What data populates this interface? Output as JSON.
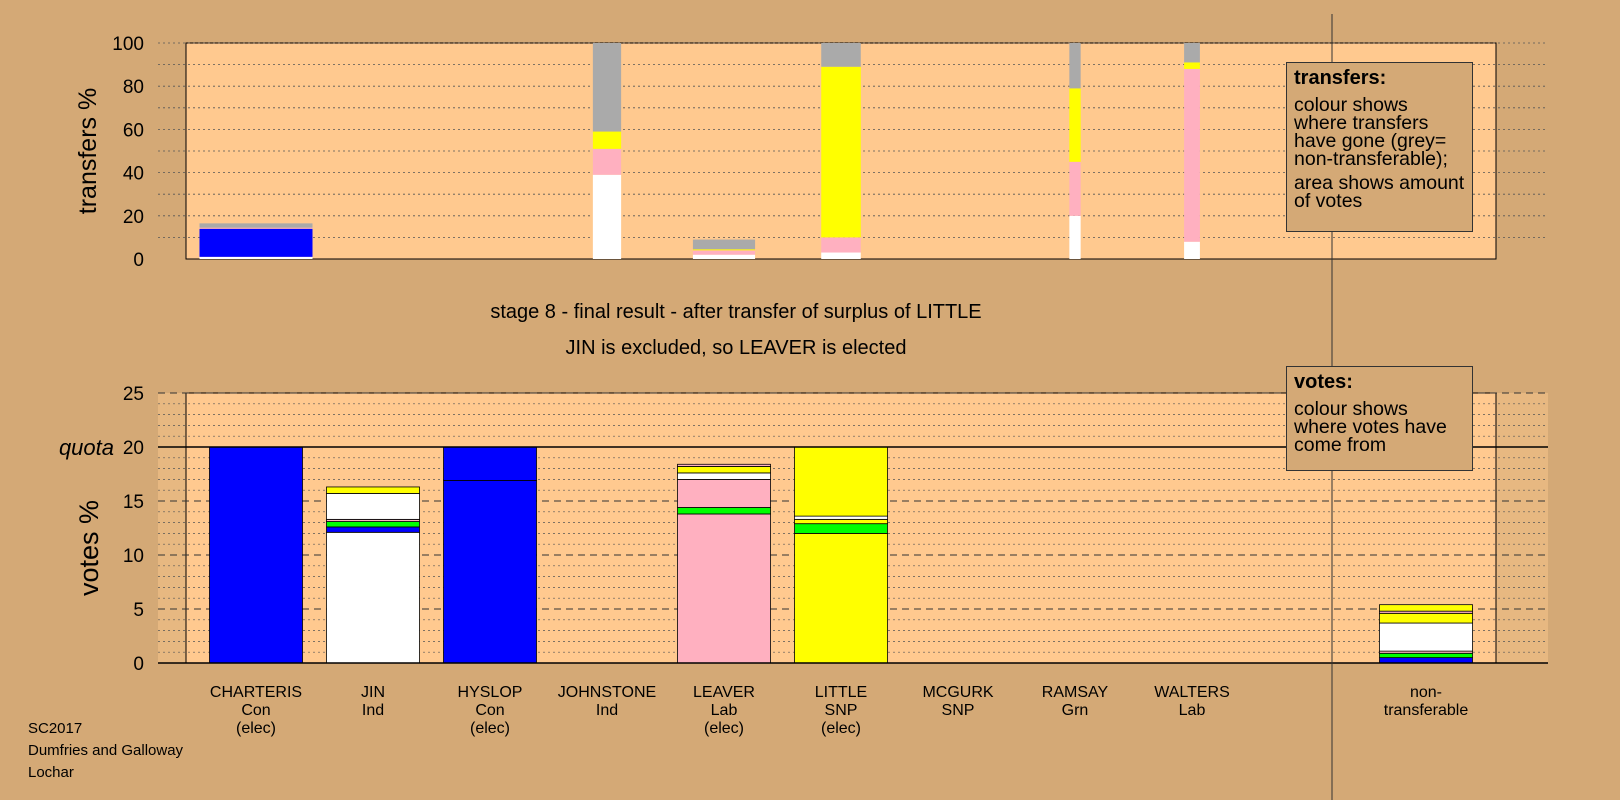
{
  "chart_data": {
    "type": "bar",
    "title": "stage 8 - final result - after transfer of surplus of LITTLE",
    "subtitle": "JIN is excluded, so LEAVER is elected",
    "colors": {
      "background": "#d4a976",
      "plot_bg": "#ffc98f",
      "Con": "#0000ff",
      "Ind": "#ffffff",
      "Lab": "#ffb0c0",
      "SNP": "#ffff00",
      "Grn": "#00ff00",
      "non-transferable": "#aaaaaa"
    },
    "categories": [
      {
        "name": "CHARTERIS",
        "party": "Con",
        "status": "(elec)"
      },
      {
        "name": "JIN",
        "party": "Ind",
        "status": ""
      },
      {
        "name": "HYSLOP",
        "party": "Con",
        "status": "(elec)"
      },
      {
        "name": "JOHNSTONE",
        "party": "Ind",
        "status": ""
      },
      {
        "name": "LEAVER",
        "party": "Lab",
        "status": "(elec)"
      },
      {
        "name": "LITTLE",
        "party": "SNP",
        "status": "(elec)"
      },
      {
        "name": "MCGURK",
        "party": "SNP",
        "status": ""
      },
      {
        "name": "RAMSAY",
        "party": "Grn",
        "status": ""
      },
      {
        "name": "WALTERS",
        "party": "Lab",
        "status": ""
      }
    ],
    "nontransferable_label": [
      "non-",
      "transferable"
    ],
    "transfers": {
      "ylabel": "transfers %",
      "ylim": [
        0,
        100
      ],
      "yticks": [
        0,
        20,
        40,
        60,
        80,
        100
      ],
      "columns": [
        {
          "candidate": "CHARTERIS",
          "width_share": 1.0,
          "segments": [
            {
              "party": "Ind",
              "value": 1
            },
            {
              "party": "Con",
              "value": 13
            },
            {
              "party": "Lab",
              "value": 0.5
            },
            {
              "party": "non-transferable",
              "value": 2
            }
          ]
        },
        {
          "candidate": "JOHNSTONE",
          "width_share": 0.25,
          "segments": [
            {
              "party": "Ind",
              "value": 39
            },
            {
              "party": "Lab",
              "value": 12
            },
            {
              "party": "SNP",
              "value": 8
            },
            {
              "party": "non-transferable",
              "value": 41
            }
          ]
        },
        {
          "candidate": "LEAVER",
          "width_share": 0.55,
          "segments": [
            {
              "party": "Ind",
              "value": 2
            },
            {
              "party": "Lab",
              "value": 2
            },
            {
              "party": "SNP",
              "value": 0.5
            },
            {
              "party": "non-transferable",
              "value": 4.5
            }
          ]
        },
        {
          "candidate": "LITTLE",
          "width_share": 0.35,
          "segments": [
            {
              "party": "Ind",
              "value": 3
            },
            {
              "party": "Lab",
              "value": 7
            },
            {
              "party": "SNP",
              "value": 79
            },
            {
              "party": "non-transferable",
              "value": 11
            }
          ]
        },
        {
          "candidate": "RAMSAY",
          "width_share": 0.1,
          "segments": [
            {
              "party": "Ind",
              "value": 20
            },
            {
              "party": "Lab",
              "value": 25
            },
            {
              "party": "SNP",
              "value": 34
            },
            {
              "party": "non-transferable",
              "value": 21
            }
          ]
        },
        {
          "candidate": "WALTERS",
          "width_share": 0.14,
          "segments": [
            {
              "party": "Ind",
              "value": 8
            },
            {
              "party": "Lab",
              "value": 80
            },
            {
              "party": "SNP",
              "value": 3
            },
            {
              "party": "non-transferable",
              "value": 9
            }
          ]
        }
      ]
    },
    "votes": {
      "ylabel": "votes %",
      "ylim": [
        0,
        25
      ],
      "yticks": [
        0,
        5,
        10,
        15,
        20,
        25
      ],
      "quota": 20,
      "quota_label": "quota",
      "bars": [
        {
          "candidate": "CHARTERIS",
          "segments": [
            {
              "party": "Con",
              "value": 20
            }
          ]
        },
        {
          "candidate": "JIN",
          "segments": [
            {
              "party": "Ind",
              "value": 12.1
            },
            {
              "party": "Con",
              "value": 0.5
            },
            {
              "party": "Grn",
              "value": 0.5
            },
            {
              "party": "Lab",
              "value": 0.2
            },
            {
              "party": "Ind",
              "value": 2.4
            },
            {
              "party": "SNP",
              "value": 0.6
            }
          ]
        },
        {
          "candidate": "HYSLOP",
          "segments": [
            {
              "party": "Con",
              "value": 16.9
            },
            {
              "party": "Con",
              "value": 3.1
            }
          ]
        },
        {
          "candidate": "JOHNSTONE",
          "segments": []
        },
        {
          "candidate": "LEAVER",
          "segments": [
            {
              "party": "Lab",
              "value": 13.8
            },
            {
              "party": "Grn",
              "value": 0.6
            },
            {
              "party": "Lab",
              "value": 2.6
            },
            {
              "party": "Ind",
              "value": 0.6
            },
            {
              "party": "SNP",
              "value": 0.6
            },
            {
              "party": "Lab",
              "value": 0.2
            }
          ]
        },
        {
          "candidate": "LITTLE",
          "segments": [
            {
              "party": "SNP",
              "value": 12
            },
            {
              "party": "Grn",
              "value": 0.9
            },
            {
              "party": "SNP",
              "value": 0.4
            },
            {
              "party": "Ind",
              "value": 0.3
            },
            {
              "party": "SNP",
              "value": 6.4
            }
          ]
        },
        {
          "candidate": "MCGURK",
          "segments": []
        },
        {
          "candidate": "RAMSAY",
          "segments": []
        },
        {
          "candidate": "WALTERS",
          "segments": []
        }
      ],
      "nontransferable": {
        "segments": [
          {
            "party": "Con",
            "value": 0.5
          },
          {
            "party": "Grn",
            "value": 0.4
          },
          {
            "party": "Lab",
            "value": 0.2
          },
          {
            "party": "Ind",
            "value": 2.6
          },
          {
            "party": "SNP",
            "value": 0.9
          },
          {
            "party": "Lab",
            "value": 0.2
          },
          {
            "party": "SNP",
            "value": 0.6
          }
        ]
      }
    }
  },
  "legend_transfers": {
    "heading": "transfers:",
    "line1": "colour shows where transfers have gone (grey= non-transferable);",
    "line2": "area shows amount of votes"
  },
  "legend_votes": {
    "heading": "votes:",
    "line1": "colour shows where votes have come from"
  },
  "caption": {
    "election": "SC2017",
    "council": "Dumfries and Galloway",
    "ward": "Lochar"
  }
}
